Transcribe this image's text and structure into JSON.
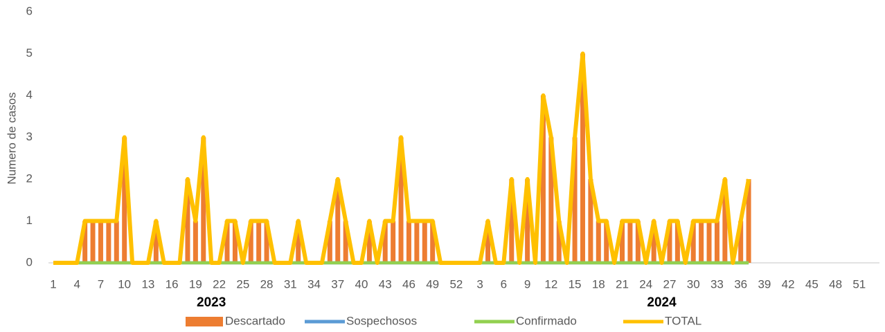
{
  "chart_data": {
    "type": "bar-line",
    "y_label": "Numero de casos",
    "year_labels": [
      "2023",
      "2024"
    ],
    "categories": [
      "1",
      null,
      null,
      "4",
      null,
      null,
      "7",
      null,
      null,
      "10",
      null,
      null,
      "13",
      null,
      null,
      "16",
      null,
      null,
      "19",
      null,
      null,
      "22",
      null,
      null,
      "25",
      null,
      null,
      "28",
      null,
      null,
      "31",
      null,
      null,
      "34",
      null,
      null,
      "37",
      null,
      null,
      "40",
      null,
      null,
      "43",
      null,
      null,
      "46",
      null,
      null,
      "49",
      null,
      null,
      "52",
      null,
      null,
      "3",
      null,
      null,
      "6",
      null,
      null,
      "9",
      null,
      null,
      "12",
      null,
      null,
      "15",
      null,
      null,
      "18",
      null,
      null,
      "21",
      null,
      null,
      "24",
      null,
      null,
      "27",
      null,
      null,
      "30",
      null,
      null,
      "33",
      null,
      null,
      "36",
      null,
      null,
      "39",
      null,
      null,
      "42",
      null,
      null,
      "45",
      null,
      null,
      "48",
      null,
      null,
      "51",
      null
    ],
    "series": [
      {
        "name": "Descartado",
        "kind": "bar",
        "color": "#ed7d31",
        "values": [
          0,
          0,
          0,
          0,
          1,
          1,
          1,
          1,
          1,
          3,
          0,
          0,
          0,
          1,
          0,
          0,
          0,
          2,
          1,
          3,
          0,
          0,
          1,
          1,
          0,
          1,
          1,
          1,
          0,
          0,
          0,
          1,
          0,
          0,
          0,
          1,
          2,
          1,
          0,
          0,
          1,
          0,
          1,
          1,
          3,
          1,
          1,
          1,
          1,
          0,
          0,
          0,
          0,
          0,
          0,
          1,
          0,
          0,
          2,
          0,
          2,
          0,
          4,
          3,
          1,
          0,
          3,
          5,
          2,
          1,
          1,
          0,
          1,
          1,
          1,
          0,
          1,
          0,
          1,
          1,
          0,
          1,
          1,
          1,
          1,
          2,
          0,
          1,
          2,
          null,
          null,
          null,
          null,
          null,
          null,
          null,
          null,
          null,
          null,
          null,
          null,
          null,
          null,
          null
        ]
      },
      {
        "name": "Sospechosos",
        "kind": "line",
        "color": "#5b9bd5",
        "values": [
          0,
          0,
          0,
          0,
          0,
          0,
          0,
          0,
          0,
          0,
          0,
          0,
          0,
          0,
          0,
          0,
          0,
          0,
          0,
          0,
          0,
          0,
          0,
          0,
          0,
          0,
          0,
          0,
          0,
          0,
          0,
          0,
          0,
          0,
          0,
          0,
          0,
          0,
          0,
          0,
          0,
          0,
          0,
          0,
          0,
          0,
          0,
          0,
          0,
          0,
          0,
          0,
          0,
          0,
          0,
          0,
          0,
          0,
          0,
          0,
          0,
          0,
          0,
          0,
          0,
          0,
          0,
          0,
          0,
          0,
          0,
          0,
          0,
          0,
          0,
          0,
          0,
          0,
          0,
          0,
          0,
          0,
          0,
          0,
          0,
          0,
          0,
          0,
          0,
          null,
          null,
          null,
          null,
          null,
          null,
          null,
          null,
          null,
          null,
          null,
          null,
          null,
          null,
          null
        ]
      },
      {
        "name": "Confirmado",
        "kind": "line",
        "color": "#92d050",
        "values": [
          0,
          0,
          0,
          0,
          0,
          0,
          0,
          0,
          0,
          0,
          0,
          0,
          0,
          0,
          0,
          0,
          0,
          0,
          0,
          0,
          0,
          0,
          0,
          0,
          0,
          0,
          0,
          0,
          0,
          0,
          0,
          0,
          0,
          0,
          0,
          0,
          0,
          0,
          0,
          0,
          0,
          0,
          0,
          0,
          0,
          0,
          0,
          0,
          0,
          0,
          0,
          0,
          0,
          0,
          0,
          0,
          0,
          0,
          0,
          0,
          0,
          0,
          0,
          0,
          0,
          0,
          0,
          0,
          0,
          0,
          0,
          0,
          0,
          0,
          0,
          0,
          0,
          0,
          0,
          0,
          0,
          0,
          0,
          0,
          0,
          0,
          0,
          0,
          0,
          null,
          null,
          null,
          null,
          null,
          null,
          null,
          null,
          null,
          null,
          null,
          null,
          null,
          null,
          null
        ]
      },
      {
        "name": "TOTAL",
        "kind": "line",
        "color": "#ffc000",
        "values": [
          0,
          0,
          0,
          0,
          1,
          1,
          1,
          1,
          1,
          3,
          0,
          0,
          0,
          1,
          0,
          0,
          0,
          2,
          1,
          3,
          0,
          0,
          1,
          1,
          0,
          1,
          1,
          1,
          0,
          0,
          0,
          1,
          0,
          0,
          0,
          1,
          2,
          1,
          0,
          0,
          1,
          0,
          1,
          1,
          3,
          1,
          1,
          1,
          1,
          0,
          0,
          0,
          0,
          0,
          0,
          1,
          0,
          0,
          2,
          0,
          2,
          0,
          4,
          3,
          1,
          0,
          3,
          5,
          2,
          1,
          1,
          0,
          1,
          1,
          1,
          0,
          1,
          0,
          1,
          1,
          0,
          1,
          1,
          1,
          1,
          2,
          0,
          1,
          2,
          null,
          null,
          null,
          null,
          null,
          null,
          null,
          null,
          null,
          null,
          null,
          null,
          null,
          null,
          null
        ]
      }
    ],
    "ylim": [
      0,
      6
    ],
    "yticks": [
      0,
      1,
      2,
      3,
      4,
      5,
      6
    ],
    "grid": false,
    "legend": "bottom"
  }
}
